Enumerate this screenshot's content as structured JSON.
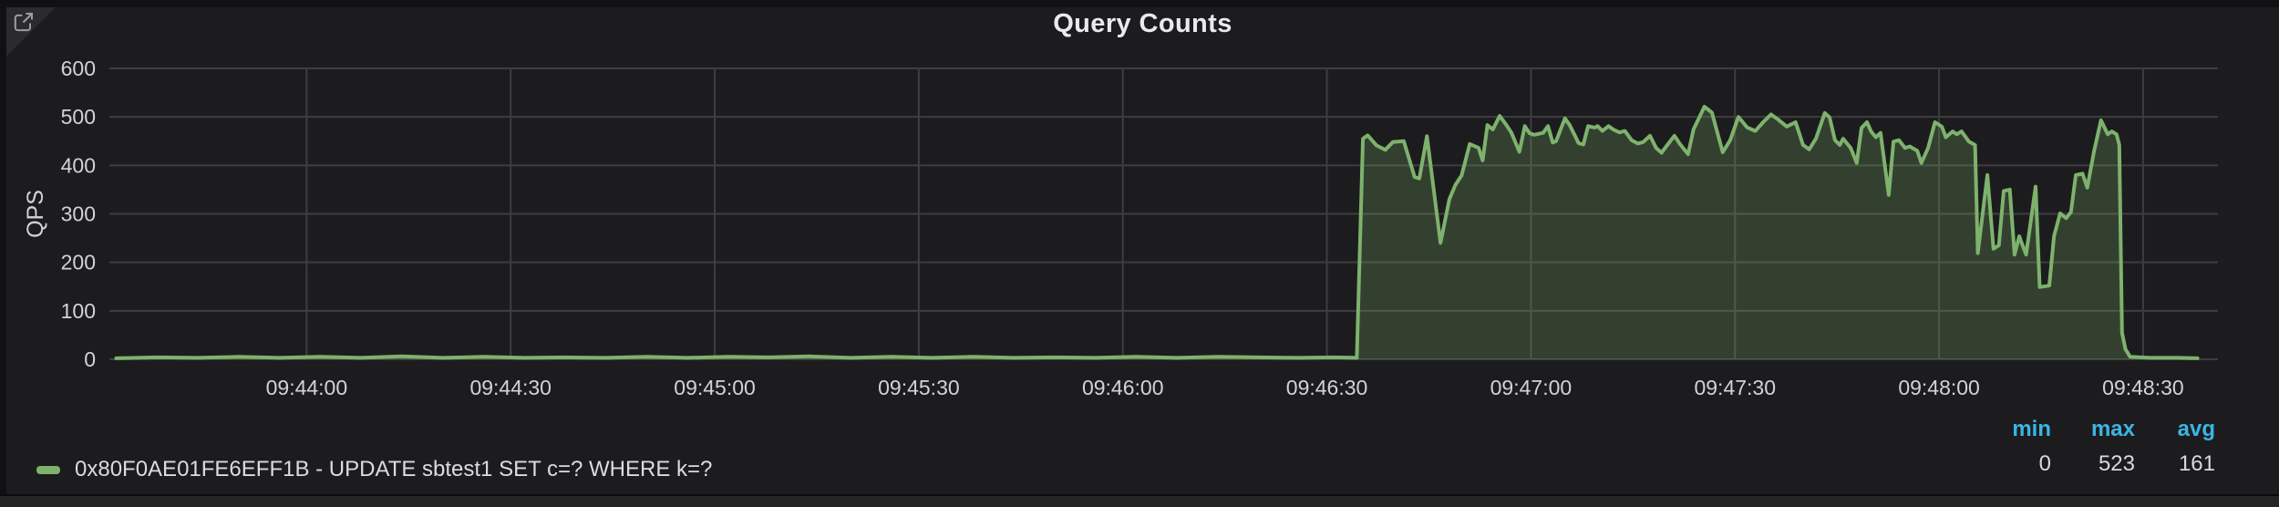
{
  "panel": {
    "title": "Query Counts"
  },
  "legend": {
    "stats_headers": [
      "min",
      "max",
      "avg"
    ]
  },
  "icons": {
    "corner_link": "external-link-icon"
  },
  "colors": {
    "series_green": "#7EB26D",
    "legend_header_blue": "#3BB5E4"
  },
  "chart_data": {
    "type": "area",
    "title": "Query Counts",
    "xlabel": "",
    "ylabel": "QPS",
    "ylim": [
      0,
      600
    ],
    "xlim": [
      0,
      310
    ],
    "grid": true,
    "legend_position": "bottom-left",
    "yticks": [
      0,
      100,
      200,
      300,
      400,
      500,
      600
    ],
    "xticks": [
      {
        "t": 29,
        "label": "09:44:00"
      },
      {
        "t": 59,
        "label": "09:44:30"
      },
      {
        "t": 89,
        "label": "09:45:00"
      },
      {
        "t": 119,
        "label": "09:45:30"
      },
      {
        "t": 149,
        "label": "09:46:00"
      },
      {
        "t": 179,
        "label": "09:46:30"
      },
      {
        "t": 209,
        "label": "09:47:00"
      },
      {
        "t": 239,
        "label": "09:47:30"
      },
      {
        "t": 269,
        "label": "09:48:00"
      },
      {
        "t": 299,
        "label": "09:48:30"
      }
    ],
    "series": [
      {
        "label": "0x80F0AE01FE6EFF1B - UPDATE sbtest1 SET c=? WHERE k=?",
        "color": "#7EB26D",
        "fill_opacity": 0.24,
        "min": 0,
        "max": 523,
        "avg": 161,
        "points": [
          [
            1,
            2
          ],
          [
            7,
            4
          ],
          [
            13,
            3
          ],
          [
            19,
            5
          ],
          [
            25,
            3
          ],
          [
            31,
            5
          ],
          [
            37,
            3
          ],
          [
            43,
            6
          ],
          [
            49,
            3
          ],
          [
            55,
            5
          ],
          [
            61,
            3
          ],
          [
            67,
            4
          ],
          [
            73,
            3
          ],
          [
            79,
            5
          ],
          [
            85,
            3
          ],
          [
            91,
            5
          ],
          [
            97,
            4
          ],
          [
            103,
            6
          ],
          [
            109,
            3
          ],
          [
            115,
            5
          ],
          [
            121,
            3
          ],
          [
            127,
            5
          ],
          [
            133,
            3
          ],
          [
            139,
            4
          ],
          [
            145,
            3
          ],
          [
            151,
            5
          ],
          [
            157,
            3
          ],
          [
            163,
            5
          ],
          [
            169,
            4
          ],
          [
            175,
            3
          ],
          [
            180,
            4
          ],
          [
            183.4,
            3
          ],
          [
            184.3,
            455
          ],
          [
            185,
            462
          ],
          [
            186.3,
            441
          ],
          [
            187.6,
            432
          ],
          [
            188.7,
            448
          ],
          [
            190.3,
            450
          ],
          [
            191.9,
            376
          ],
          [
            192.6,
            373
          ],
          [
            193.7,
            460
          ],
          [
            195.7,
            240
          ],
          [
            197,
            330
          ],
          [
            197.9,
            360
          ],
          [
            198.8,
            379
          ],
          [
            200,
            444
          ],
          [
            201.3,
            436
          ],
          [
            201.9,
            410
          ],
          [
            202.6,
            483
          ],
          [
            203.4,
            474
          ],
          [
            204.4,
            502
          ],
          [
            205.4,
            483
          ],
          [
            206.1,
            468
          ],
          [
            207.3,
            428
          ],
          [
            208.1,
            481
          ],
          [
            208.8,
            466
          ],
          [
            209.5,
            463
          ],
          [
            210.8,
            467
          ],
          [
            211.5,
            481
          ],
          [
            212.2,
            447
          ],
          [
            212.7,
            450
          ],
          [
            214,
            497
          ],
          [
            214.7,
            483
          ],
          [
            215.4,
            463
          ],
          [
            216,
            446
          ],
          [
            216.7,
            443
          ],
          [
            217.4,
            481
          ],
          [
            218.4,
            478
          ],
          [
            218.8,
            481
          ],
          [
            219.5,
            471
          ],
          [
            220.4,
            481
          ],
          [
            221.1,
            474
          ],
          [
            222,
            468
          ],
          [
            222.8,
            471
          ],
          [
            223.8,
            452
          ],
          [
            224.7,
            445
          ],
          [
            225.5,
            448
          ],
          [
            226.5,
            461
          ],
          [
            227.4,
            436
          ],
          [
            228.2,
            426
          ],
          [
            229.1,
            443
          ],
          [
            230.1,
            461
          ],
          [
            230.9,
            444
          ],
          [
            232.1,
            423
          ],
          [
            232.9,
            474
          ],
          [
            234.5,
            521
          ],
          [
            235.6,
            509
          ],
          [
            237.2,
            427
          ],
          [
            238.3,
            452
          ],
          [
            239.5,
            500
          ],
          [
            240.8,
            478
          ],
          [
            242,
            471
          ],
          [
            243.2,
            490
          ],
          [
            244.3,
            505
          ],
          [
            245.4,
            494
          ],
          [
            246.6,
            480
          ],
          [
            247.9,
            489
          ],
          [
            249,
            442
          ],
          [
            249.9,
            433
          ],
          [
            250.9,
            455
          ],
          [
            252.2,
            508
          ],
          [
            252.9,
            499
          ],
          [
            253.7,
            452
          ],
          [
            254.4,
            442
          ],
          [
            254.9,
            455
          ],
          [
            256,
            436
          ],
          [
            256.9,
            405
          ],
          [
            257.6,
            477
          ],
          [
            258.4,
            489
          ],
          [
            259,
            470
          ],
          [
            259.7,
            458
          ],
          [
            260.4,
            467
          ],
          [
            261.6,
            339
          ],
          [
            262.3,
            449
          ],
          [
            263.1,
            452
          ],
          [
            264,
            436
          ],
          [
            264.7,
            439
          ],
          [
            265.8,
            430
          ],
          [
            266.4,
            405
          ],
          [
            267.4,
            436
          ],
          [
            268.4,
            489
          ],
          [
            269.4,
            480
          ],
          [
            270,
            458
          ],
          [
            271,
            470
          ],
          [
            271.6,
            464
          ],
          [
            272.3,
            470
          ],
          [
            273.4,
            449
          ],
          [
            274.3,
            442
          ],
          [
            274.7,
            219
          ],
          [
            276.1,
            380
          ],
          [
            277,
            228
          ],
          [
            277.8,
            235
          ],
          [
            278.5,
            347
          ],
          [
            279.4,
            350
          ],
          [
            280.1,
            216
          ],
          [
            280.8,
            254
          ],
          [
            281.2,
            238
          ],
          [
            281.8,
            216
          ],
          [
            283.2,
            356
          ],
          [
            283.8,
            149
          ],
          [
            285.2,
            152
          ],
          [
            285.9,
            254
          ],
          [
            286.8,
            301
          ],
          [
            287.7,
            291
          ],
          [
            288.4,
            304
          ],
          [
            289.1,
            380
          ],
          [
            290.1,
            383
          ],
          [
            290.8,
            354
          ],
          [
            291.8,
            430
          ],
          [
            292.8,
            493
          ],
          [
            293.8,
            464
          ],
          [
            294.4,
            470
          ],
          [
            295.1,
            464
          ],
          [
            295.5,
            442
          ],
          [
            295.9,
            55
          ],
          [
            296.4,
            21
          ],
          [
            297.1,
            5
          ],
          [
            300,
            3
          ],
          [
            304,
            3
          ],
          [
            307,
            2
          ]
        ]
      }
    ]
  }
}
